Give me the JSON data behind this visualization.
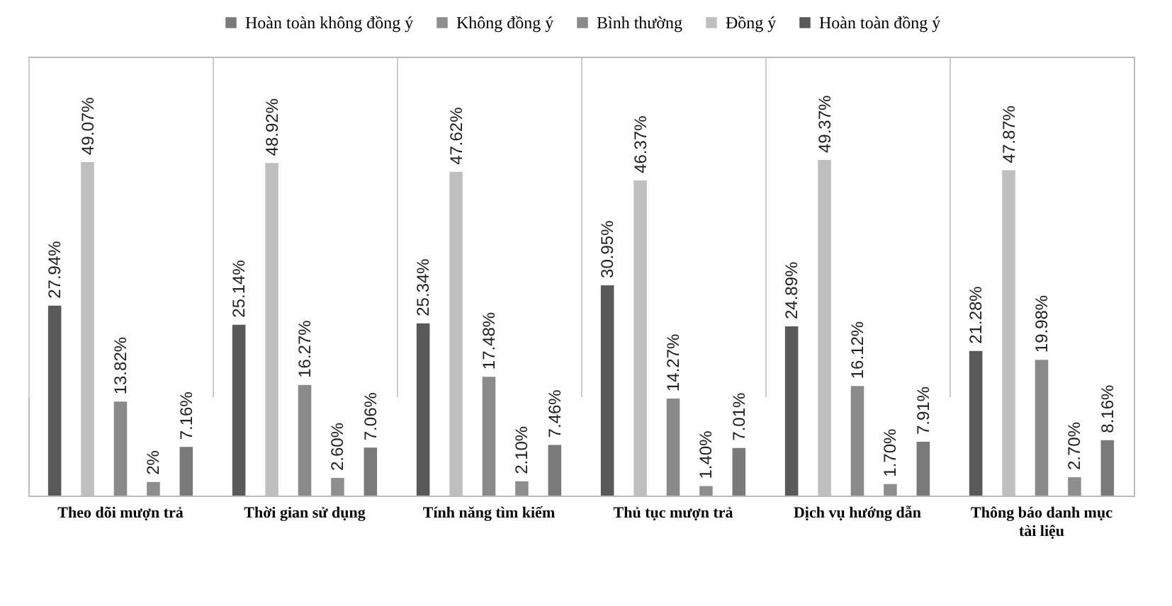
{
  "chart_data": {
    "type": "bar",
    "categories": [
      "Theo dõi mượn trả",
      "Thời gian sử dụng",
      "Tính năng tìm kiếm",
      "Thủ tục mượn trả",
      "Dịch vụ hướng dẫn",
      "Thông báo danh mục tài liệu"
    ],
    "series": [
      {
        "name": "Hoàn toàn không đồng ý",
        "color": "#7a7a7a",
        "values": [
          7.16,
          7.06,
          7.46,
          7.01,
          7.91,
          8.16
        ],
        "value_labels": [
          "7.16%",
          "7.06%",
          "7.46%",
          "7.01%",
          "7.91%",
          "8.16%"
        ]
      },
      {
        "name": "Không đồng ý",
        "color": "#8e8e8e",
        "values": [
          2,
          2.6,
          2.1,
          1.4,
          1.7,
          2.7
        ],
        "value_labels": [
          "2%",
          "2.60%",
          "2.10%",
          "1.40%",
          "1.70%",
          "2.70%"
        ]
      },
      {
        "name": "Bình thường",
        "color": "#8a8a8a",
        "values": [
          13.82,
          16.27,
          17.48,
          14.27,
          16.12,
          19.98
        ],
        "value_labels": [
          "13.82%",
          "16.27%",
          "17.48%",
          "14.27%",
          "16.12%",
          "19.98%"
        ]
      },
      {
        "name": "Đồng ý",
        "color": "#bfbfbf",
        "values": [
          49.07,
          48.92,
          47.62,
          46.37,
          49.37,
          47.87
        ],
        "value_labels": [
          "49.07%",
          "48.92%",
          "47.62%",
          "46.37%",
          "49.37%",
          "47.87%"
        ]
      },
      {
        "name": "Hoàn toàn đồng ý",
        "color": "#595959",
        "values": [
          27.94,
          25.14,
          25.34,
          30.95,
          24.89,
          21.28
        ],
        "value_labels": [
          "27.94%",
          "25.14%",
          "25.34%",
          "30.95%",
          "24.89%",
          "21.28%"
        ]
      }
    ],
    "grid": "x",
    "legend": "top"
  }
}
